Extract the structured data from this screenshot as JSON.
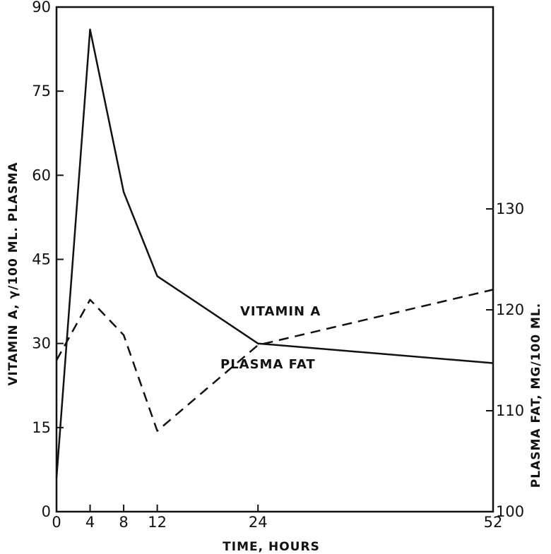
{
  "chart_data": {
    "type": "line",
    "title": "",
    "xlabel": "TIME, HOURS",
    "ylabel_left": "VITAMIN A, γ/100 ML. PLASMA",
    "ylabel_right": "PLASMA FAT, MG/100 ML.",
    "x_ticks": [
      0,
      4,
      8,
      12,
      24,
      52
    ],
    "x_tick_labels": [
      "0",
      "4",
      "8",
      "12",
      "24",
      "52"
    ],
    "xlim": [
      0,
      52
    ],
    "y_left_ticks": [
      0,
      15,
      30,
      45,
      60,
      75,
      90
    ],
    "y_left_tick_labels": [
      "0",
      "15",
      "30",
      "45",
      "60",
      "75",
      "90"
    ],
    "ylim_left": [
      0,
      90
    ],
    "y_right_ticks": [
      100,
      110,
      120,
      130
    ],
    "y_right_tick_labels": [
      "100",
      "110",
      "120",
      "130"
    ],
    "ylim_right": [
      100,
      150
    ],
    "grid": false,
    "legend": "none",
    "series": [
      {
        "name": "VITAMIN A",
        "axis": "left",
        "style": "solid",
        "x": [
          0,
          4,
          8,
          12,
          24,
          52
        ],
        "y": [
          6,
          86,
          57,
          42,
          30,
          26.5
        ]
      },
      {
        "name": "PLASMA FAT",
        "axis": "right",
        "style": "dashed",
        "x": [
          0,
          4,
          8,
          12,
          24,
          52
        ],
        "y": [
          115,
          121,
          117.5,
          108,
          116.5,
          122
        ]
      }
    ]
  }
}
